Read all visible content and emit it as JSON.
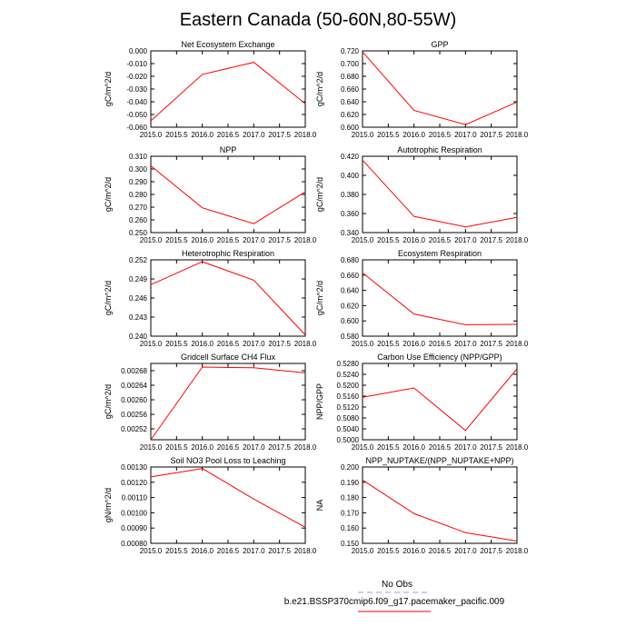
{
  "title": "Eastern Canada (50-60N,80-55W)",
  "colors": {
    "model_line": "#ff0000",
    "obs_line": "#9999ff",
    "frame": "#000000"
  },
  "chart_data": [
    {
      "type": "line",
      "title": "Net Ecosystem Exchange",
      "ylabel": "gC/m^2/d",
      "x": [
        2015,
        2016,
        2017,
        2018
      ],
      "values": [
        -0.055,
        -0.0185,
        -0.009,
        -0.0415
      ],
      "xlim": [
        2015,
        2018
      ],
      "ylim": [
        -0.06,
        0.0
      ],
      "yticks": [
        0.0,
        -0.01,
        -0.02,
        -0.03,
        -0.04,
        -0.05,
        -0.06
      ],
      "ytick_labels": [
        "0.000",
        "-0.010",
        "-0.020",
        "-0.030",
        "-0.040",
        "-0.050",
        "-0.060"
      ]
    },
    {
      "type": "line",
      "title": "GPP",
      "ylabel": "gC/m^2/d",
      "x": [
        2015,
        2016,
        2017,
        2018
      ],
      "values": [
        0.7185,
        0.6265,
        0.604,
        0.6395
      ],
      "xlim": [
        2015,
        2018
      ],
      "ylim": [
        0.6,
        0.72
      ],
      "yticks": [
        0.72,
        0.7,
        0.68,
        0.66,
        0.64,
        0.62,
        0.6
      ],
      "ytick_labels": [
        "0.720",
        "0.700",
        "0.680",
        "0.660",
        "0.640",
        "0.620",
        "0.600"
      ]
    },
    {
      "type": "line",
      "title": "NPP",
      "ylabel": "gC/m^2/d",
      "x": [
        2015,
        2016,
        2017,
        2018
      ],
      "values": [
        0.3025,
        0.2695,
        0.257,
        0.282
      ],
      "xlim": [
        2015,
        2018
      ],
      "ylim": [
        0.25,
        0.31
      ],
      "yticks": [
        0.31,
        0.3,
        0.29,
        0.28,
        0.27,
        0.26,
        0.25
      ],
      "ytick_labels": [
        "0.310",
        "0.300",
        "0.290",
        "0.280",
        "0.270",
        "0.260",
        "0.250"
      ]
    },
    {
      "type": "line",
      "title": "Autotrophic Respiration",
      "ylabel": "gC/m^2/d",
      "x": [
        2015,
        2016,
        2017,
        2018
      ],
      "values": [
        0.416,
        0.357,
        0.346,
        0.356
      ],
      "xlim": [
        2015,
        2018
      ],
      "ylim": [
        0.34,
        0.42
      ],
      "yticks": [
        0.42,
        0.4,
        0.38,
        0.36,
        0.34
      ],
      "ytick_labels": [
        "0.420",
        "0.400",
        "0.380",
        "0.360",
        "0.340"
      ]
    },
    {
      "type": "line",
      "title": "Heterotrophic Respiration",
      "ylabel": "gC/m^2/d",
      "x": [
        2015,
        2016,
        2017,
        2018
      ],
      "values": [
        0.2481,
        0.2517,
        0.2488,
        0.2402
      ],
      "xlim": [
        2015,
        2018
      ],
      "ylim": [
        0.24,
        0.252
      ],
      "yticks": [
        0.252,
        0.249,
        0.246,
        0.243,
        0.24
      ],
      "ytick_labels": [
        "0.252",
        "0.249",
        "0.246",
        "0.243",
        "0.240"
      ]
    },
    {
      "type": "line",
      "title": "Ecosystem Respiration",
      "ylabel": "gC/m^2/d",
      "x": [
        2015,
        2016,
        2017,
        2018
      ],
      "values": [
        0.663,
        0.609,
        0.595,
        0.5955
      ],
      "xlim": [
        2015,
        2018
      ],
      "ylim": [
        0.58,
        0.68
      ],
      "yticks": [
        0.68,
        0.66,
        0.64,
        0.62,
        0.6,
        0.58
      ],
      "ytick_labels": [
        "0.680",
        "0.660",
        "0.640",
        "0.620",
        "0.600",
        "0.580"
      ]
    },
    {
      "type": "line",
      "title": "Gridcell Surface CH4 Flux",
      "ylabel": "gC/m^2/d",
      "x": [
        2015,
        2016,
        2017,
        2018
      ],
      "values": [
        0.00249,
        0.00269,
        0.002688,
        0.002674
      ],
      "xlim": [
        2015,
        2018
      ],
      "ylim": [
        0.00249,
        0.0027
      ],
      "yticks": [
        0.00268,
        0.00264,
        0.0026,
        0.00256,
        0.00252
      ],
      "ytick_labels": [
        "0.00268",
        "0.00264",
        "0.00260",
        "0.00256",
        "0.00252"
      ]
    },
    {
      "type": "line",
      "title": "Carbon Use Efficiency (NPP/GPP)",
      "ylabel": "NPP/GPP",
      "x": [
        2015,
        2016,
        2017,
        2018
      ],
      "values": [
        0.5156,
        0.519,
        0.5034,
        0.526
      ],
      "xlim": [
        2015,
        2018
      ],
      "ylim": [
        0.5,
        0.528
      ],
      "yticks": [
        0.528,
        0.524,
        0.52,
        0.516,
        0.512,
        0.508,
        0.504,
        0.5
      ],
      "ytick_labels": [
        "0.5280",
        "0.5240",
        "0.5200",
        "0.5160",
        "0.5120",
        "0.5080",
        "0.5040",
        "0.5000"
      ]
    },
    {
      "type": "line",
      "title": "Soil NO3 Pool Loss to Leaching",
      "ylabel": "gN/m^2/d",
      "x": [
        2015,
        2016,
        2017,
        2018
      ],
      "values": [
        0.001235,
        0.00129,
        0.00109,
        0.000905
      ],
      "xlim": [
        2015,
        2018
      ],
      "ylim": [
        0.0008,
        0.0013
      ],
      "yticks": [
        0.0013,
        0.0012,
        0.0011,
        0.001,
        0.0009,
        0.0008
      ],
      "ytick_labels": [
        "0.00130",
        "0.00120",
        "0.00110",
        "0.00100",
        "0.00090",
        "0.00080"
      ]
    },
    {
      "type": "line",
      "title": "NPP_NUPTAKE/(NPP_NUPTAKE+NPP)",
      "ylabel": "NA",
      "x": [
        2015,
        2016,
        2017,
        2018
      ],
      "values": [
        0.1915,
        0.1695,
        0.157,
        0.1515
      ],
      "xlim": [
        2015,
        2018
      ],
      "ylim": [
        0.15,
        0.2
      ],
      "yticks": [
        0.2,
        0.19,
        0.18,
        0.17,
        0.16,
        0.15
      ],
      "ytick_labels": [
        "0.200",
        "0.190",
        "0.180",
        "0.170",
        "0.160",
        "0.150"
      ]
    }
  ],
  "xticks": [
    2015,
    2015.5,
    2016,
    2016.5,
    2017,
    2017.5,
    2018
  ],
  "xtick_labels": [
    "2015.0",
    "2015.5",
    "2016.0",
    "2016.5",
    "2017.0",
    "2017.5",
    "2018.0"
  ],
  "legend": {
    "obs_label": "No Obs",
    "model_label": "b.e21.BSSP370cmip6.f09_g17.pacemaker_pacific.009"
  }
}
